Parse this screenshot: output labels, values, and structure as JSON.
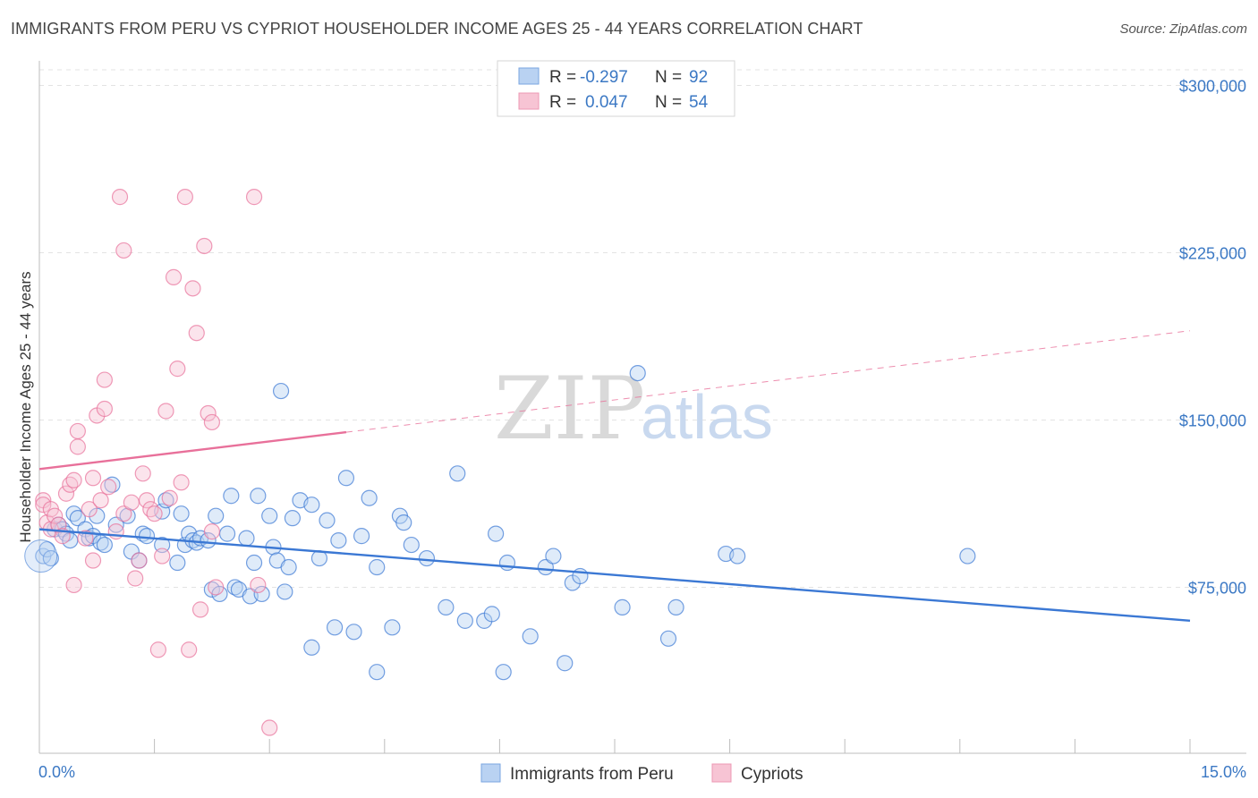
{
  "header": {
    "title": "IMMIGRANTS FROM PERU VS CYPRIOT HOUSEHOLDER INCOME AGES 25 - 44 YEARS CORRELATION CHART",
    "source": "Source: ZipAtlas.com"
  },
  "colors": {
    "peru": "#3b78d4",
    "peru_fill": "#b9d2f2",
    "cypriot": "#e8709a",
    "cypriot_fill": "#f7c4d4",
    "tick": "#3b78c4"
  },
  "legend": {
    "rows": [
      {
        "r_label": "R =",
        "r_value": "-0.297",
        "n_label": "N =",
        "n_value": "92"
      },
      {
        "r_label": "R =",
        "r_value": "0.047",
        "n_label": "N =",
        "n_value": "54"
      }
    ]
  },
  "watermark": {
    "zip": "ZIP",
    "atlas": "atlas"
  },
  "chart_data": {
    "type": "scatter",
    "xlabel": "",
    "ylabel": "Householder Income Ages 25 - 44 years",
    "xlim": [
      0,
      15
    ],
    "ylim": [
      7000,
      307000
    ],
    "x_tick_labels": {
      "left": "0.0%",
      "right": "15.0%"
    },
    "y_ticks": [
      {
        "value": 75000,
        "label": "$75,000"
      },
      {
        "value": 150000,
        "label": "$150,000"
      },
      {
        "value": 225000,
        "label": "$225,000"
      },
      {
        "value": 300000,
        "label": "$300,000"
      }
    ],
    "grid": true,
    "legend_position": "top-center",
    "series": [
      {
        "name": "Immigrants from Peru",
        "trend": {
          "x0": 0,
          "y0": 101000,
          "x1": 15,
          "y1": 60000,
          "solid_to": 15
        },
        "points": [
          [
            0.05,
            89000
          ],
          [
            0.1,
            92000
          ],
          [
            0.15,
            88000
          ],
          [
            0.2,
            101000
          ],
          [
            0.25,
            103000
          ],
          [
            0.3,
            101000
          ],
          [
            0.35,
            99000
          ],
          [
            0.4,
            96000
          ],
          [
            0.45,
            108000
          ],
          [
            0.5,
            106000
          ],
          [
            0.6,
            101000
          ],
          [
            0.65,
            97000
          ],
          [
            0.7,
            98000
          ],
          [
            0.75,
            107000
          ],
          [
            0.8,
            95000
          ],
          [
            0.85,
            94000
          ],
          [
            0.95,
            121000
          ],
          [
            1.0,
            103000
          ],
          [
            1.15,
            107000
          ],
          [
            1.2,
            91000
          ],
          [
            1.3,
            87000
          ],
          [
            1.35,
            99000
          ],
          [
            1.4,
            98000
          ],
          [
            1.6,
            109000
          ],
          [
            1.65,
            114000
          ],
          [
            1.6,
            94000
          ],
          [
            1.8,
            86000
          ],
          [
            1.9,
            94000
          ],
          [
            1.85,
            108000
          ],
          [
            1.95,
            99000
          ],
          [
            2.0,
            96000
          ],
          [
            2.05,
            95000
          ],
          [
            2.1,
            97000
          ],
          [
            2.2,
            96000
          ],
          [
            2.25,
            74000
          ],
          [
            2.3,
            107000
          ],
          [
            2.35,
            72000
          ],
          [
            2.45,
            99000
          ],
          [
            2.5,
            116000
          ],
          [
            2.55,
            75000
          ],
          [
            2.6,
            74000
          ],
          [
            2.7,
            97000
          ],
          [
            2.75,
            71000
          ],
          [
            2.8,
            86000
          ],
          [
            2.85,
            116000
          ],
          [
            2.9,
            72000
          ],
          [
            3.0,
            107000
          ],
          [
            3.05,
            93000
          ],
          [
            3.1,
            87000
          ],
          [
            3.15,
            163000
          ],
          [
            3.2,
            73000
          ],
          [
            3.25,
            84000
          ],
          [
            3.3,
            106000
          ],
          [
            3.4,
            114000
          ],
          [
            3.55,
            112000
          ],
          [
            3.65,
            88000
          ],
          [
            3.75,
            105000
          ],
          [
            3.85,
            57000
          ],
          [
            3.9,
            96000
          ],
          [
            4.0,
            124000
          ],
          [
            4.1,
            55000
          ],
          [
            4.2,
            98000
          ],
          [
            4.3,
            115000
          ],
          [
            4.4,
            84000
          ],
          [
            4.6,
            57000
          ],
          [
            4.7,
            107000
          ],
          [
            4.75,
            104000
          ],
          [
            4.85,
            94000
          ],
          [
            5.05,
            88000
          ],
          [
            5.3,
            66000
          ],
          [
            5.45,
            126000
          ],
          [
            5.55,
            60000
          ],
          [
            5.8,
            60000
          ],
          [
            5.9,
            63000
          ],
          [
            5.95,
            99000
          ],
          [
            6.05,
            37000
          ],
          [
            6.1,
            86000
          ],
          [
            6.4,
            53000
          ],
          [
            6.6,
            84000
          ],
          [
            6.7,
            89000
          ],
          [
            6.85,
            41000
          ],
          [
            6.95,
            77000
          ],
          [
            7.05,
            80000
          ],
          [
            7.6,
            66000
          ],
          [
            7.8,
            171000
          ],
          [
            8.2,
            52000
          ],
          [
            8.3,
            66000
          ],
          [
            8.95,
            90000
          ],
          [
            9.1,
            89000
          ],
          [
            12.1,
            89000
          ],
          [
            4.4,
            37000
          ],
          [
            3.55,
            48000
          ]
        ]
      },
      {
        "name": "Cypriots",
        "trend": {
          "x0": 0,
          "y0": 128000,
          "x1": 15,
          "y1": 190000,
          "solid_to": 4.0
        },
        "points": [
          [
            0.05,
            114000
          ],
          [
            0.05,
            112000
          ],
          [
            0.1,
            104000
          ],
          [
            0.15,
            101000
          ],
          [
            0.15,
            110000
          ],
          [
            0.2,
            107000
          ],
          [
            0.25,
            103000
          ],
          [
            0.3,
            98000
          ],
          [
            0.35,
            117000
          ],
          [
            0.4,
            121000
          ],
          [
            0.45,
            123000
          ],
          [
            0.45,
            76000
          ],
          [
            0.5,
            145000
          ],
          [
            0.5,
            138000
          ],
          [
            0.6,
            97000
          ],
          [
            0.7,
            124000
          ],
          [
            0.7,
            87000
          ],
          [
            0.65,
            110000
          ],
          [
            0.75,
            152000
          ],
          [
            0.8,
            114000
          ],
          [
            0.85,
            168000
          ],
          [
            0.85,
            155000
          ],
          [
            0.9,
            120000
          ],
          [
            1.0,
            100000
          ],
          [
            1.05,
            250000
          ],
          [
            1.1,
            226000
          ],
          [
            1.1,
            108000
          ],
          [
            1.2,
            113000
          ],
          [
            1.25,
            79000
          ],
          [
            1.3,
            87000
          ],
          [
            1.35,
            126000
          ],
          [
            1.4,
            114000
          ],
          [
            1.45,
            110000
          ],
          [
            1.5,
            108000
          ],
          [
            1.55,
            47000
          ],
          [
            1.6,
            89000
          ],
          [
            1.65,
            154000
          ],
          [
            1.7,
            115000
          ],
          [
            1.75,
            214000
          ],
          [
            1.8,
            173000
          ],
          [
            1.85,
            122000
          ],
          [
            1.9,
            250000
          ],
          [
            1.95,
            47000
          ],
          [
            2.0,
            209000
          ],
          [
            2.05,
            189000
          ],
          [
            2.1,
            65000
          ],
          [
            2.15,
            228000
          ],
          [
            2.2,
            153000
          ],
          [
            2.25,
            149000
          ],
          [
            2.3,
            75000
          ],
          [
            2.8,
            250000
          ],
          [
            2.85,
            76000
          ],
          [
            3.0,
            12000
          ],
          [
            2.25,
            100000
          ]
        ]
      }
    ]
  },
  "bottom_legend": {
    "items": [
      {
        "label": "Immigrants from Peru"
      },
      {
        "label": "Cypriots"
      }
    ]
  }
}
